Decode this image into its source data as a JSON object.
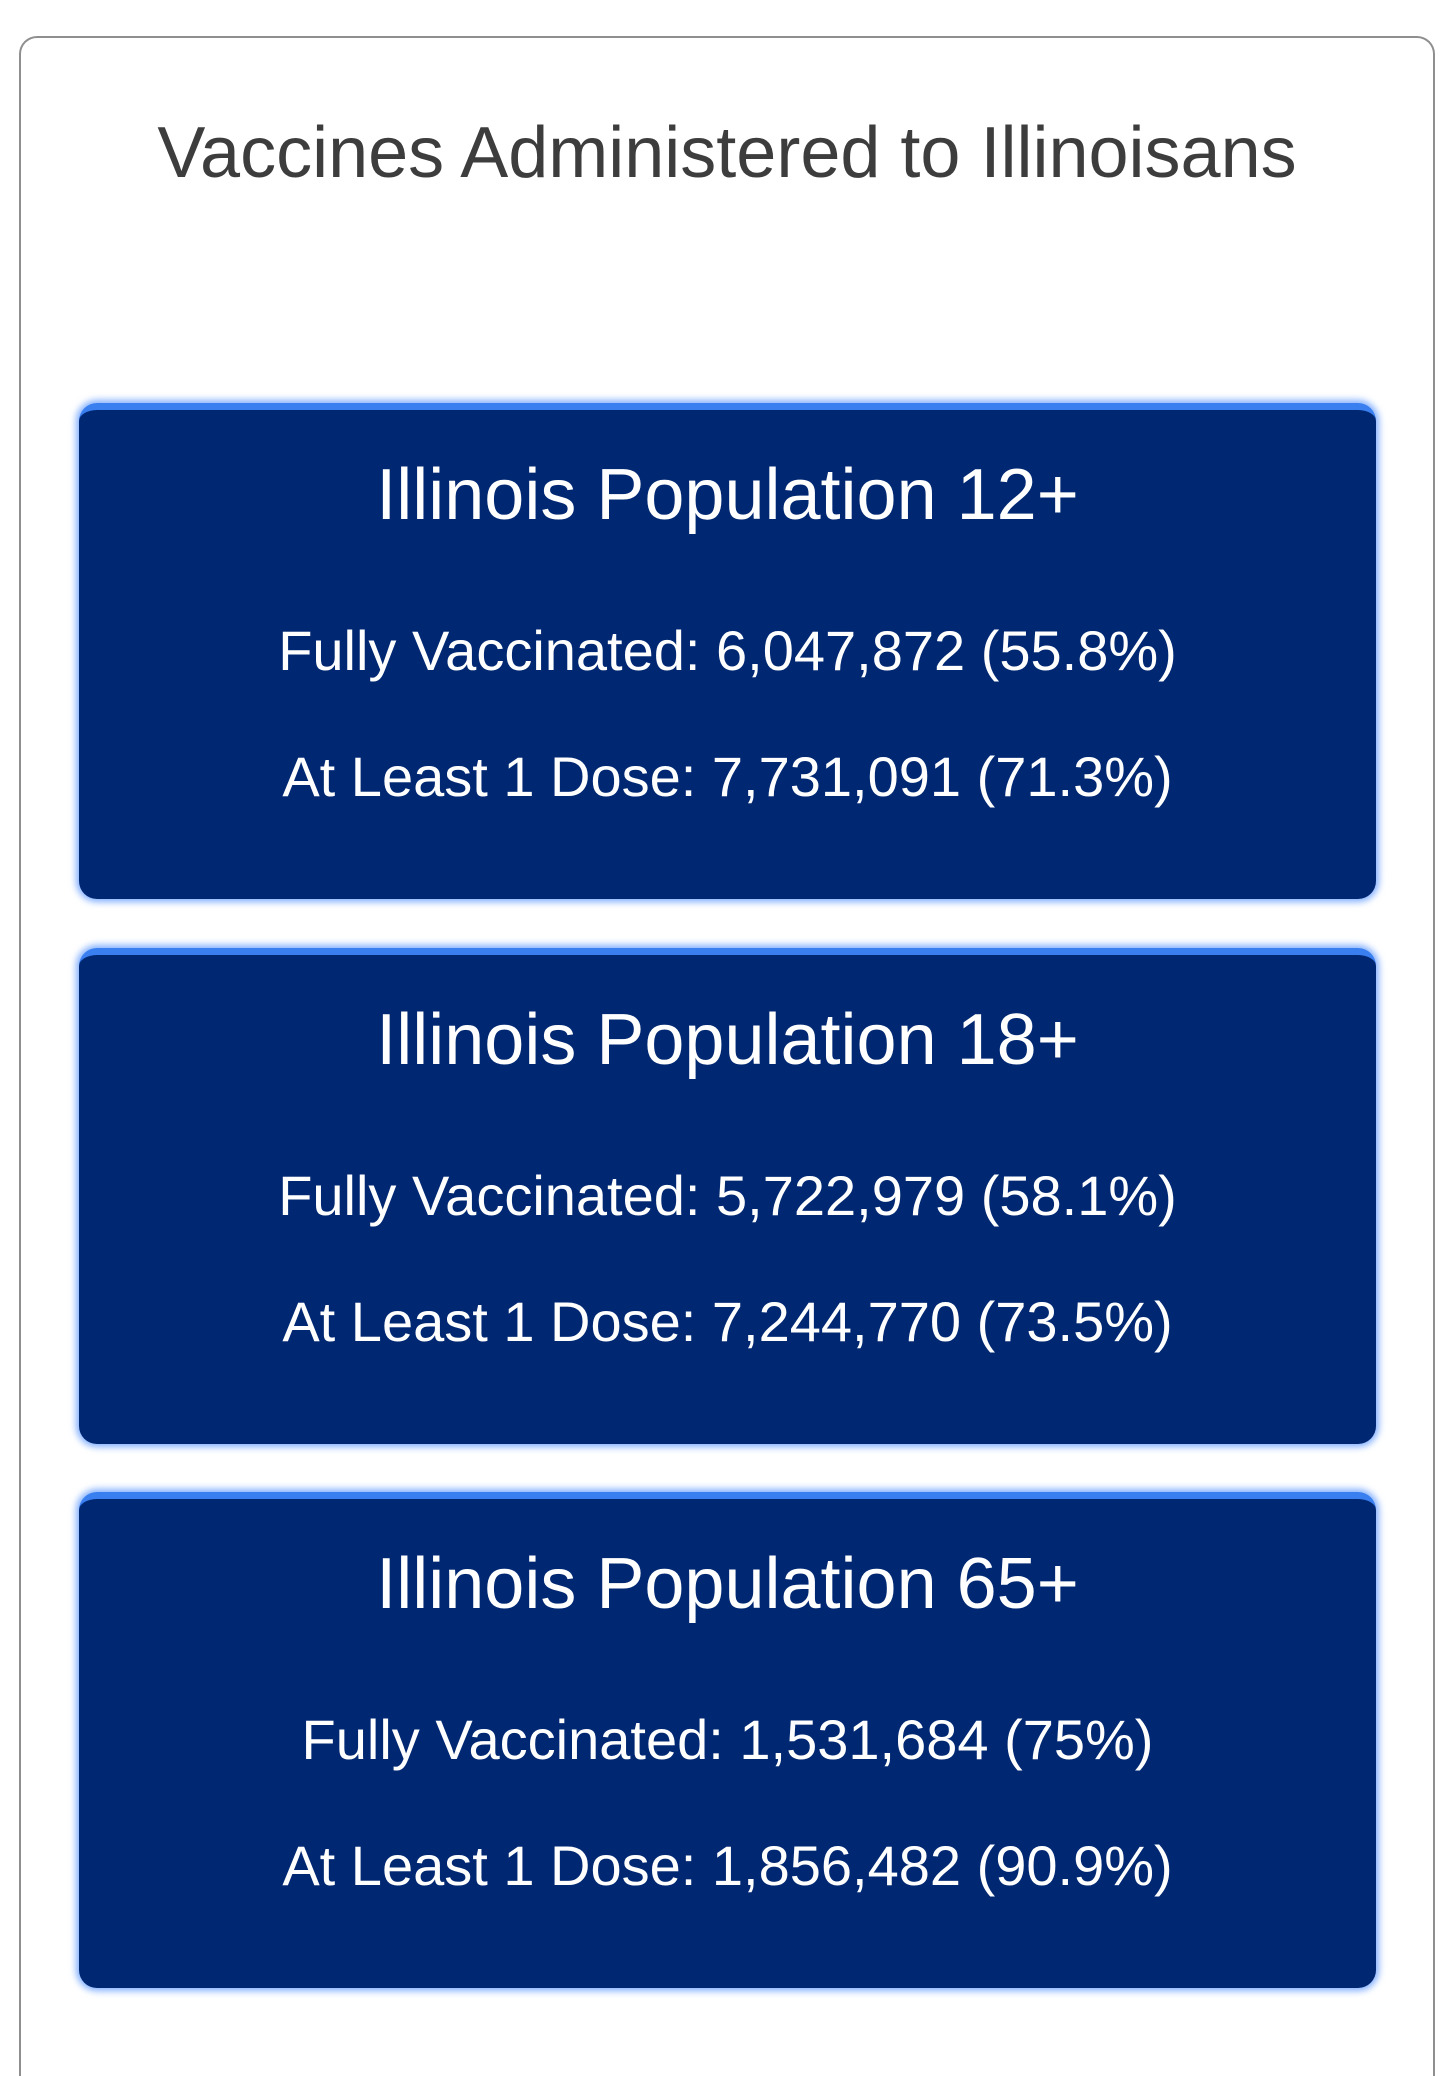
{
  "panel": {
    "title": "Vaccines Administered to Illinoisans"
  },
  "cards": [
    {
      "title": "Illinois Population 12+",
      "fully_vaccinated": "Fully Vaccinated: 6,047,872 (55.8%)",
      "at_least_one_dose": "At Least 1 Dose: 7,731,091 (71.3%)"
    },
    {
      "title": "Illinois Population 18+",
      "fully_vaccinated": "Fully Vaccinated: 5,722,979 (58.1%)",
      "at_least_one_dose": "At Least 1 Dose: 7,244,770 (73.5%)"
    },
    {
      "title": "Illinois Population 65+",
      "fully_vaccinated": "Fully Vaccinated: 1,531,684 (75%)",
      "at_least_one_dose": "At Least 1 Dose: 1,856,482 (90.9%)"
    }
  ],
  "colors": {
    "card_background": "#002771",
    "card_accent": "#3a7ff0",
    "card_glow": "#5a96ff",
    "title_text": "#3d3d3d",
    "panel_border": "#8f8f8f"
  }
}
